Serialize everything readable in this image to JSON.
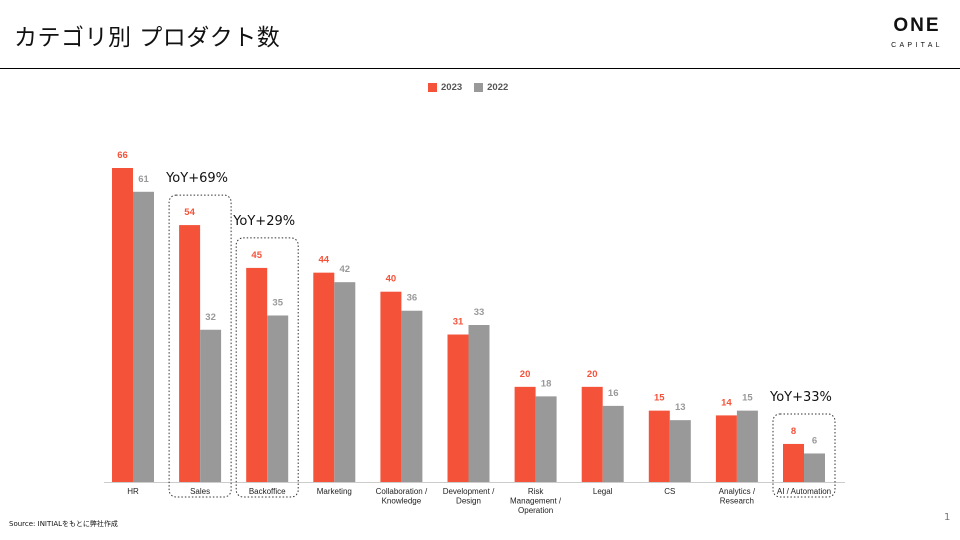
{
  "slide": {
    "title": "カテゴリ別 プロダクト数",
    "logo_main": "ONE",
    "logo_sub": "CAPITAL",
    "source": "Source: INITIALをもとに弊社作成",
    "page_number": "1"
  },
  "colors": {
    "series_2023": "#f4533a",
    "series_2022": "#999999",
    "dotted_box": "#333333"
  },
  "chart_data": {
    "type": "bar",
    "title": "",
    "xlabel": "",
    "ylabel": "",
    "ylim": [
      0,
      70
    ],
    "grid": false,
    "legend_position": "top-center",
    "categories": [
      "HR",
      "Sales",
      "Backoffice",
      "Marketing",
      "Collaboration / Knowledge",
      "Development / Design",
      "Risk Management / Operation",
      "Legal",
      "CS",
      "Analytics / Research",
      "AI / Automation"
    ],
    "category_lines": [
      [
        "HR"
      ],
      [
        "Sales"
      ],
      [
        "Backoffice"
      ],
      [
        "Marketing"
      ],
      [
        "Collaboration /",
        "Knowledge"
      ],
      [
        "Development /",
        "Design"
      ],
      [
        "Risk",
        "Management /",
        "Operation"
      ],
      [
        "Legal"
      ],
      [
        "CS"
      ],
      [
        "Analytics /",
        "Research"
      ],
      [
        "AI / Automation"
      ]
    ],
    "series": [
      {
        "name": "2023",
        "values": [
          66,
          54,
          45,
          44,
          40,
          31,
          20,
          20,
          15,
          14,
          8
        ]
      },
      {
        "name": "2022",
        "values": [
          61,
          32,
          35,
          42,
          36,
          33,
          18,
          16,
          13,
          15,
          6
        ]
      }
    ],
    "annotations": [
      {
        "category": "Sales",
        "text": "YoY+69%"
      },
      {
        "category": "Backoffice",
        "text": "YoY+29%"
      },
      {
        "category": "AI / Automation",
        "text": "YoY+33%"
      }
    ]
  }
}
